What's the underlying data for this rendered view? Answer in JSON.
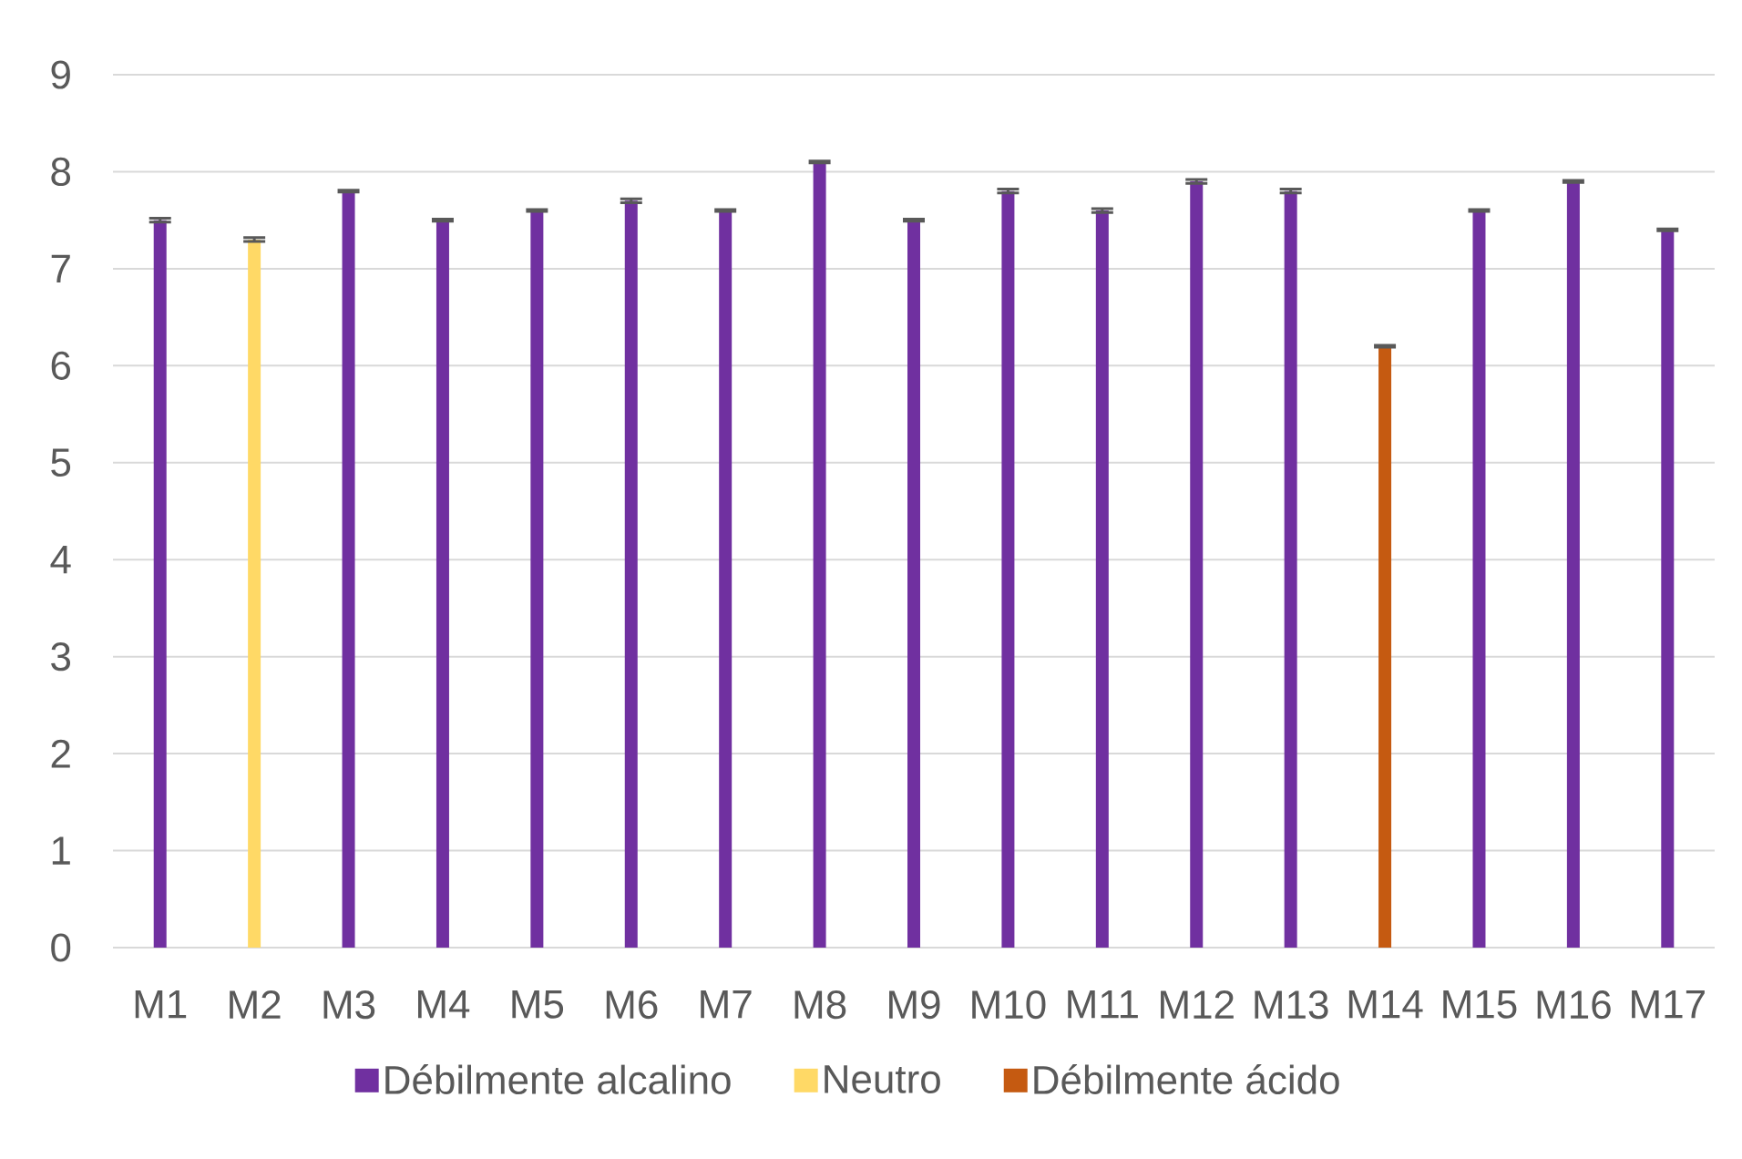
{
  "chart_data": {
    "type": "bar",
    "categories": [
      "M1",
      "M2",
      "M3",
      "M4",
      "M5",
      "M6",
      "M7",
      "M8",
      "M9",
      "M10",
      "M11",
      "M12",
      "M13",
      "M14",
      "M15",
      "M16",
      "M17"
    ],
    "series": [
      {
        "name": "Débilmente alcalino",
        "color": "#7030a0",
        "values": [
          7.5,
          null,
          7.8,
          7.5,
          7.6,
          7.7,
          7.6,
          8.1,
          7.5,
          7.8,
          7.6,
          7.9,
          7.8,
          null,
          7.6,
          7.9,
          7.4
        ],
        "errors": [
          0.02,
          null,
          0.01,
          0.01,
          0.01,
          0.02,
          0.01,
          0.01,
          0.01,
          0.02,
          0.02,
          0.02,
          0.02,
          null,
          0.01,
          0.01,
          0.01
        ]
      },
      {
        "name": "Neutro",
        "color": "#ffd966",
        "values": [
          null,
          7.3,
          null,
          null,
          null,
          null,
          null,
          null,
          null,
          null,
          null,
          null,
          null,
          null,
          null,
          null,
          null
        ],
        "errors": [
          null,
          0.02,
          null,
          null,
          null,
          null,
          null,
          null,
          null,
          null,
          null,
          null,
          null,
          null,
          null,
          null,
          null
        ]
      },
      {
        "name": "Débilmente ácido",
        "color": "#c55a11",
        "values": [
          null,
          null,
          null,
          null,
          null,
          null,
          null,
          null,
          null,
          null,
          null,
          null,
          null,
          6.2,
          null,
          null,
          null
        ],
        "errors": [
          null,
          null,
          null,
          null,
          null,
          null,
          null,
          null,
          null,
          null,
          null,
          null,
          null,
          0.01,
          null,
          null,
          null
        ]
      }
    ],
    "ylim": [
      0,
      9
    ],
    "yticks": [
      0,
      1,
      2,
      3,
      4,
      5,
      6,
      7,
      8,
      9
    ],
    "grid": "y",
    "legend": "bottom"
  }
}
